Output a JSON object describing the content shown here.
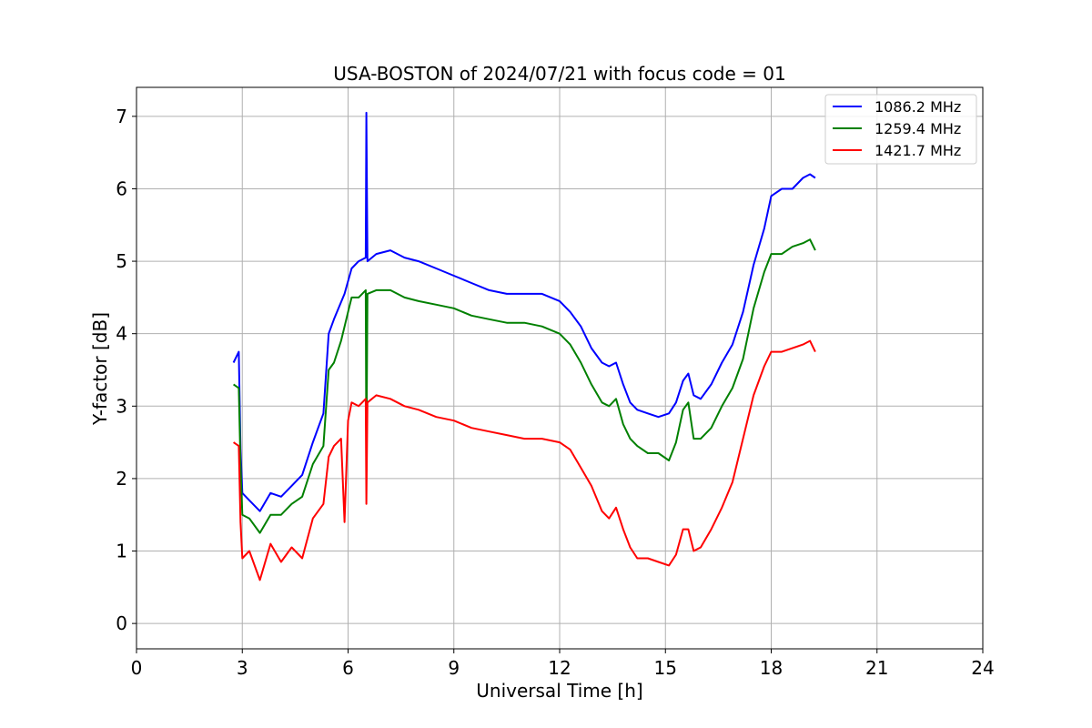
{
  "chart_data": {
    "type": "line",
    "title": "USA-BOSTON of 2024/07/21 with focus code = 01",
    "xlabel": "Universal Time [h]",
    "ylabel": "Y-factor [dB]",
    "xlim": [
      0,
      24
    ],
    "ylim": [
      -0.35,
      7.4
    ],
    "xticks": [
      0,
      3,
      6,
      9,
      12,
      15,
      18,
      21,
      24
    ],
    "yticks": [
      0,
      1,
      2,
      3,
      4,
      5,
      6,
      7
    ],
    "grid": true,
    "legend_position": "top-right",
    "series": [
      {
        "name": "1086.2 MHz",
        "color": "#0000ff",
        "x": [
          2.75,
          2.9,
          2.95,
          3.0,
          3.2,
          3.5,
          3.8,
          4.1,
          4.4,
          4.7,
          5.0,
          5.3,
          5.45,
          5.6,
          5.9,
          6.1,
          6.3,
          6.5,
          6.52,
          6.55,
          6.8,
          7.2,
          7.6,
          8.0,
          8.5,
          9.0,
          9.5,
          10.0,
          10.5,
          11.0,
          11.5,
          12.0,
          12.3,
          12.6,
          12.9,
          13.2,
          13.4,
          13.6,
          13.8,
          14.0,
          14.2,
          14.5,
          14.8,
          15.1,
          15.3,
          15.5,
          15.65,
          15.8,
          16.0,
          16.3,
          16.6,
          16.9,
          17.2,
          17.5,
          17.8,
          18.0,
          18.3,
          18.6,
          18.9,
          19.1,
          19.25
        ],
        "y": [
          3.6,
          3.75,
          2.4,
          1.8,
          1.7,
          1.55,
          1.8,
          1.75,
          1.9,
          2.05,
          2.5,
          2.9,
          4.0,
          4.2,
          4.55,
          4.9,
          5.0,
          5.05,
          7.05,
          5.0,
          5.1,
          5.15,
          5.05,
          5.0,
          4.9,
          4.8,
          4.7,
          4.6,
          4.55,
          4.55,
          4.55,
          4.45,
          4.3,
          4.1,
          3.8,
          3.6,
          3.55,
          3.6,
          3.3,
          3.05,
          2.95,
          2.9,
          2.85,
          2.9,
          3.05,
          3.35,
          3.45,
          3.15,
          3.1,
          3.3,
          3.6,
          3.85,
          4.3,
          4.95,
          5.45,
          5.9,
          6.0,
          6.0,
          6.15,
          6.2,
          6.15
        ]
      },
      {
        "name": "1259.4 MHz",
        "color": "#008000",
        "x": [
          2.75,
          2.9,
          2.95,
          3.0,
          3.2,
          3.5,
          3.8,
          4.1,
          4.4,
          4.7,
          5.0,
          5.3,
          5.45,
          5.6,
          5.8,
          6.0,
          6.1,
          6.3,
          6.5,
          6.52,
          6.55,
          6.8,
          7.2,
          7.6,
          8.0,
          8.5,
          9.0,
          9.5,
          10.0,
          10.5,
          11.0,
          11.5,
          12.0,
          12.3,
          12.6,
          12.9,
          13.2,
          13.4,
          13.6,
          13.8,
          14.0,
          14.2,
          14.5,
          14.8,
          15.1,
          15.3,
          15.5,
          15.65,
          15.8,
          16.0,
          16.3,
          16.6,
          16.9,
          17.2,
          17.5,
          17.8,
          18.0,
          18.3,
          18.6,
          18.9,
          19.1,
          19.25
        ],
        "y": [
          3.3,
          3.25,
          2.2,
          1.5,
          1.45,
          1.25,
          1.5,
          1.5,
          1.65,
          1.75,
          2.2,
          2.45,
          3.5,
          3.6,
          3.9,
          4.3,
          4.5,
          4.5,
          4.6,
          2.3,
          4.55,
          4.6,
          4.6,
          4.5,
          4.45,
          4.4,
          4.35,
          4.25,
          4.2,
          4.15,
          4.15,
          4.1,
          4.0,
          3.85,
          3.6,
          3.3,
          3.05,
          3.0,
          3.1,
          2.75,
          2.55,
          2.45,
          2.35,
          2.35,
          2.25,
          2.5,
          2.95,
          3.05,
          2.55,
          2.55,
          2.7,
          3.0,
          3.25,
          3.65,
          4.35,
          4.85,
          5.1,
          5.1,
          5.2,
          5.25,
          5.3,
          5.15
        ]
      },
      {
        "name": "1421.7 MHz",
        "color": "#ff0000",
        "x": [
          2.75,
          2.9,
          2.95,
          3.0,
          3.2,
          3.5,
          3.8,
          4.1,
          4.4,
          4.7,
          5.0,
          5.3,
          5.45,
          5.6,
          5.8,
          5.9,
          6.0,
          6.1,
          6.3,
          6.5,
          6.52,
          6.55,
          6.8,
          7.2,
          7.6,
          8.0,
          8.5,
          9.0,
          9.5,
          10.0,
          10.5,
          11.0,
          11.5,
          12.0,
          12.3,
          12.6,
          12.9,
          13.2,
          13.4,
          13.6,
          13.8,
          14.0,
          14.2,
          14.5,
          14.8,
          15.1,
          15.3,
          15.5,
          15.65,
          15.8,
          16.0,
          16.3,
          16.6,
          16.9,
          17.2,
          17.5,
          17.8,
          18.0,
          18.3,
          18.6,
          18.9,
          19.1,
          19.25
        ],
        "y": [
          2.5,
          2.45,
          1.4,
          0.9,
          1.0,
          0.6,
          1.1,
          0.85,
          1.05,
          0.9,
          1.45,
          1.65,
          2.3,
          2.45,
          2.55,
          1.4,
          2.8,
          3.05,
          3.0,
          3.1,
          1.65,
          3.05,
          3.15,
          3.1,
          3.0,
          2.95,
          2.85,
          2.8,
          2.7,
          2.65,
          2.6,
          2.55,
          2.55,
          2.5,
          2.4,
          2.15,
          1.9,
          1.55,
          1.45,
          1.6,
          1.3,
          1.05,
          0.9,
          0.9,
          0.85,
          0.8,
          0.95,
          1.3,
          1.3,
          1.0,
          1.05,
          1.3,
          1.6,
          1.95,
          2.55,
          3.15,
          3.55,
          3.75,
          3.75,
          3.8,
          3.85,
          3.9,
          3.75
        ]
      }
    ]
  }
}
